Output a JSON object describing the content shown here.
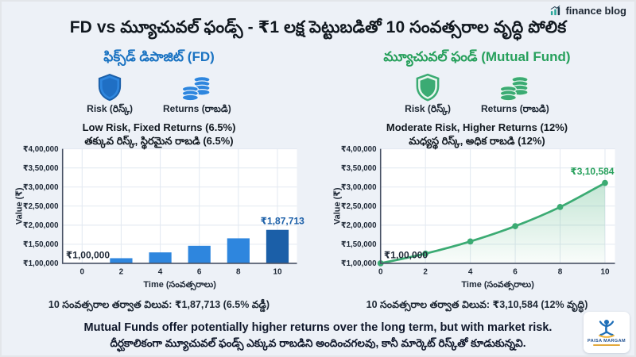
{
  "page": {
    "brand": "finance blog",
    "title": "FD vs మ్యూచువల్ ఫండ్స్ - ₹1 లక్ష పెట్టుబడితో 10 సంవత్సరాల వృద్ధి పోలిక",
    "footer_en": "Mutual Funds offer potentially higher returns over the long term, but with market risk.",
    "footer_te": "దీర్ఘకాలికంగా మ్యూచువల్ ఫండ్స్ ఎక్కువ రాబడిని అందించగలవు, కానీ మార్కెట్ రిస్క్‌తో కూడుకున్నవి.",
    "logo_text": "PAISA MARGAM"
  },
  "fd": {
    "heading": "ఫిక్స్‌డ్ డిపాజిట్ (FD)",
    "risk_label": "Risk (రిస్క్)",
    "returns_label": "Returns (రాబడి)",
    "desc_en": "Low Risk, Fixed Returns (6.5%)",
    "desc_te": "తక్కువ రిస్క్, స్థిరమైన రాబడి (6.5%)",
    "caption": "10 సంవత్సరాల తర్వాత విలువ: ₹1,87,713 (6.5% వడ్డీ)",
    "accent": "#1a73c2"
  },
  "mf": {
    "heading": "మ్యూచువల్ ఫండ్ (Mutual Fund)",
    "risk_label": "Risk (రిస్క్)",
    "returns_label": "Returns (రాబడి)",
    "desc_en": "Moderate Risk, Higher Returns (12%)",
    "desc_te": "మధ్యస్థ రిస్క్, అధిక రాబడి (12%)",
    "caption": "10 సంవత్సరాల తర్వాత విలువ: ₹3,10,584 (12% వృద్ధి)",
    "accent": "#27a05c"
  },
  "chart_data": [
    {
      "id": "fd",
      "type": "bar",
      "title": "Fixed Deposit growth of ₹1,00,000 over 10 years at 6.5%",
      "x": [
        0,
        2,
        4,
        6,
        8,
        10
      ],
      "values": [
        100000,
        113422,
        128647,
        145914,
        165500,
        187713
      ],
      "xlabel": "Time (సంవత్సరాలు)",
      "ylabel": "Value (₹)",
      "ylim": [
        100000,
        400000
      ],
      "yticks": [
        100000,
        150000,
        200000,
        250000,
        300000,
        350000,
        400000
      ],
      "ytick_labels": [
        "₹1,00,000",
        "₹1,50,000",
        "₹2,00,000",
        "₹2,50,000",
        "₹3,00,000",
        "₹3,50,000",
        "₹4,00,000"
      ],
      "start_label": "₹1,00,000",
      "end_label": "₹1,87,713",
      "grid": true,
      "legend": "none",
      "colors": {
        "bar": "#2e86de",
        "last_bar": "#1b5fa8",
        "end_label": "#1b5fa8",
        "start_label": "#1f2937",
        "tick": "#1f2937",
        "grid": "#e3e9f1",
        "axis": "#475063",
        "plot_bg": "#ffffff"
      }
    },
    {
      "id": "mf",
      "type": "area",
      "title": "Mutual Fund growth of ₹1,00,000 over 10 years at 12%",
      "x": [
        0,
        2,
        4,
        6,
        8,
        10
      ],
      "values": [
        100000,
        125440,
        157352,
        197382,
        247596,
        310584
      ],
      "xlabel": "Time (సంవత్సరాలు)",
      "ylabel": "Value (₹)",
      "ylim": [
        100000,
        400000
      ],
      "yticks": [
        100000,
        150000,
        200000,
        250000,
        300000,
        350000,
        400000
      ],
      "ytick_labels": [
        "₹1,00,000",
        "₹1,50,000",
        "₹2,00,000",
        "₹2,50,000",
        "₹3,00,000",
        "₹3,50,000",
        "₹4,00,000"
      ],
      "start_label": "₹1,00,000",
      "end_label": "₹3,10,584",
      "grid": true,
      "legend": "none",
      "colors": {
        "line": "#3bab73",
        "end_label": "#27a05c",
        "start_label": "#1f2937",
        "tick": "#1f2937",
        "grid": "#e3e9f1",
        "axis": "#475063",
        "plot_bg": "#ffffff"
      }
    }
  ]
}
